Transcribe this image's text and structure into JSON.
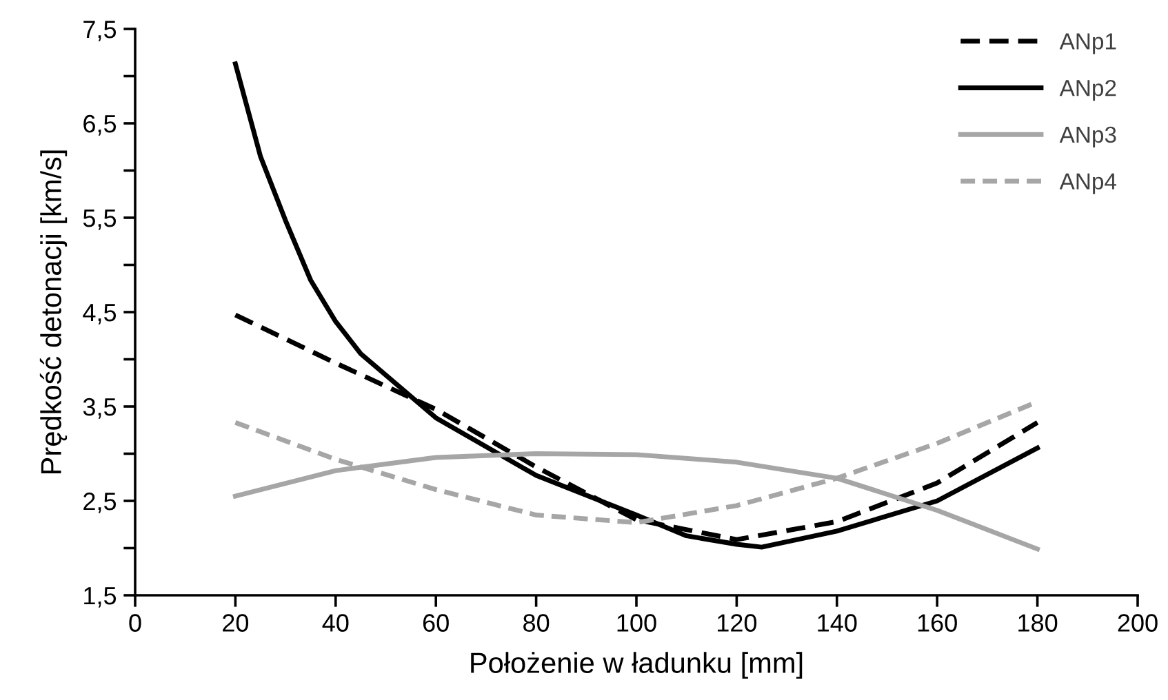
{
  "chart_data": {
    "type": "line",
    "xlabel": "Położenie w ładunku [mm]",
    "ylabel": "Prędkość detonacji [km/s]",
    "xlim": [
      0,
      200
    ],
    "xticks": [
      0,
      20,
      40,
      60,
      80,
      100,
      120,
      140,
      160,
      180,
      200
    ],
    "ylim": [
      1.5,
      7.5
    ],
    "yticks": [
      {
        "value": 1.5,
        "label": "1,5"
      },
      {
        "value": 2.0,
        "label": null
      },
      {
        "value": 2.5,
        "label": "2,5"
      },
      {
        "value": 3.0,
        "label": null
      },
      {
        "value": 3.5,
        "label": "3,5"
      },
      {
        "value": 4.0,
        "label": null
      },
      {
        "value": 4.5,
        "label": "4,5"
      },
      {
        "value": 5.0,
        "label": null
      },
      {
        "value": 5.5,
        "label": "5,5"
      },
      {
        "value": 6.0,
        "label": null
      },
      {
        "value": 6.5,
        "label": "6,5"
      },
      {
        "value": 7.0,
        "label": null
      },
      {
        "value": 7.5,
        "label": "7,5"
      }
    ],
    "grid": false,
    "legend": "top right",
    "marker": "none",
    "series": [
      {
        "name": "ANp1",
        "color": "#000000",
        "line_style": "dashed",
        "x": [
          20,
          40,
          60,
          80,
          100,
          120,
          140,
          160,
          180
        ],
        "values": [
          4.47,
          3.96,
          3.47,
          2.86,
          2.3,
          2.09,
          2.28,
          2.69,
          3.33
        ]
      },
      {
        "name": "ANp2",
        "color": "#000000",
        "line_style": "solid",
        "x": [
          20,
          25,
          30,
          35,
          40,
          45,
          60,
          80,
          100,
          110,
          120,
          125,
          140,
          160,
          180
        ],
        "values": [
          7.13,
          6.15,
          5.47,
          4.84,
          4.4,
          4.06,
          3.38,
          2.77,
          2.35,
          2.13,
          2.04,
          2.01,
          2.18,
          2.5,
          3.06
        ]
      },
      {
        "name": "ANp3",
        "color": "#a6a6a6",
        "line_style": "solid",
        "x": [
          20,
          40,
          60,
          80,
          100,
          120,
          140,
          160,
          180
        ],
        "values": [
          2.55,
          2.82,
          2.96,
          3.0,
          2.99,
          2.91,
          2.74,
          2.4,
          1.99
        ]
      },
      {
        "name": "ANp4",
        "color": "#a6a6a6",
        "line_style": "dashed",
        "x": [
          20,
          40,
          60,
          80,
          100,
          120,
          140,
          160,
          180
        ],
        "values": [
          3.33,
          2.94,
          2.62,
          2.35,
          2.27,
          2.45,
          2.74,
          3.11,
          3.55
        ]
      }
    ]
  }
}
